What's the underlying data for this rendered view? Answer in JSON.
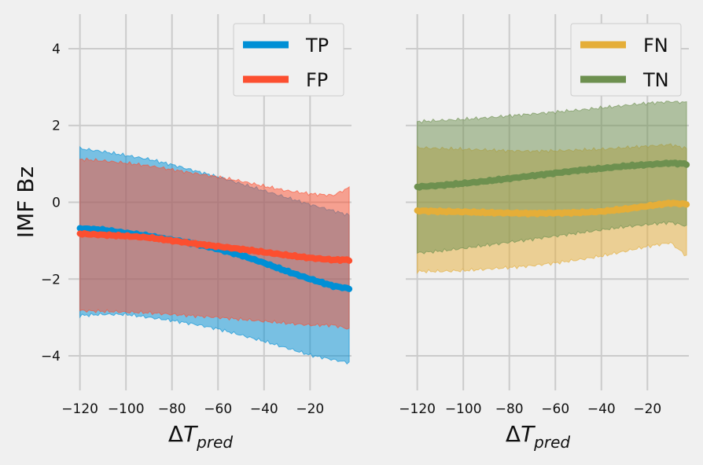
{
  "chart_data": [
    {
      "type": "line",
      "panel": "left",
      "ylabel": "IMF Bz",
      "xlabel_base": "ΔT",
      "xlabel_sub": "pred",
      "xlim": [
        -125,
        -2
      ],
      "ylim": [
        -4.9,
        4.9
      ],
      "xticks": [
        -120,
        -100,
        -80,
        -60,
        -40,
        -20
      ],
      "xtick_labels": [
        "−120",
        "−100",
        "−80",
        "−60",
        "−40",
        "−20"
      ],
      "yticks": [
        -4,
        -2,
        0,
        2,
        4
      ],
      "ytick_labels": [
        "−4",
        "−2",
        "0",
        "2",
        "4"
      ],
      "grid": true,
      "legend_position": "top-right",
      "x": [
        -120,
        -110,
        -100,
        -90,
        -80,
        -70,
        -60,
        -50,
        -40,
        -30,
        -20,
        -10,
        -3
      ],
      "series": [
        {
          "name": "TP",
          "color": "#008fd5",
          "mean": [
            -0.68,
            -0.72,
            -0.8,
            -0.88,
            -0.98,
            -1.08,
            -1.22,
            -1.38,
            -1.58,
            -1.8,
            -2.0,
            -2.18,
            -2.25
          ],
          "upper": [
            1.4,
            1.32,
            1.22,
            1.12,
            0.98,
            0.82,
            0.66,
            0.48,
            0.3,
            0.12,
            -0.06,
            -0.22,
            -0.34
          ],
          "lower": [
            -2.95,
            -2.92,
            -2.92,
            -3.0,
            -3.08,
            -3.18,
            -3.3,
            -3.46,
            -3.62,
            -3.8,
            -3.98,
            -4.1,
            -4.18
          ]
        },
        {
          "name": "FP",
          "color": "#fc4f30",
          "mean": [
            -0.82,
            -0.85,
            -0.88,
            -0.92,
            -1.0,
            -1.08,
            -1.15,
            -1.22,
            -1.3,
            -1.38,
            -1.45,
            -1.5,
            -1.5
          ],
          "upper": [
            1.12,
            1.08,
            1.02,
            0.95,
            0.85,
            0.75,
            0.66,
            0.55,
            0.42,
            0.3,
            0.22,
            0.18,
            0.38
          ],
          "lower": [
            -2.82,
            -2.84,
            -2.86,
            -2.88,
            -2.92,
            -2.96,
            -3.0,
            -3.05,
            -3.1,
            -3.15,
            -3.2,
            -3.2,
            -3.3
          ]
        }
      ]
    },
    {
      "type": "line",
      "panel": "right",
      "xlabel_base": "ΔT",
      "xlabel_sub": "pred",
      "xlim": [
        -125,
        -2
      ],
      "ylim": [
        -4.9,
        4.9
      ],
      "xticks": [
        -120,
        -100,
        -80,
        -60,
        -40,
        -20
      ],
      "xtick_labels": [
        "−120",
        "−100",
        "−80",
        "−60",
        "−40",
        "−20"
      ],
      "grid": true,
      "legend_position": "top-right",
      "x": [
        -120,
        -110,
        -100,
        -90,
        -80,
        -70,
        -60,
        -50,
        -40,
        -30,
        -20,
        -10,
        -3
      ],
      "series": [
        {
          "name": "FN",
          "color": "#e5ae38",
          "mean": [
            -0.22,
            -0.24,
            -0.25,
            -0.27,
            -0.28,
            -0.29,
            -0.28,
            -0.27,
            -0.24,
            -0.18,
            -0.1,
            -0.02,
            -0.05
          ],
          "upper": [
            1.42,
            1.4,
            1.38,
            1.36,
            1.34,
            1.33,
            1.34,
            1.36,
            1.38,
            1.42,
            1.46,
            1.5,
            1.4
          ],
          "lower": [
            -1.8,
            -1.8,
            -1.78,
            -1.74,
            -1.7,
            -1.65,
            -1.58,
            -1.5,
            -1.4,
            -1.28,
            -1.15,
            -1.05,
            -1.4
          ]
        },
        {
          "name": "TN",
          "color": "#6d904f",
          "mean": [
            0.4,
            0.44,
            0.49,
            0.55,
            0.62,
            0.69,
            0.76,
            0.83,
            0.88,
            0.94,
            0.98,
            1.02,
            1.0
          ],
          "upper": [
            2.1,
            2.13,
            2.16,
            2.2,
            2.25,
            2.3,
            2.35,
            2.4,
            2.46,
            2.52,
            2.58,
            2.62,
            2.6
          ],
          "lower": [
            -1.32,
            -1.27,
            -1.2,
            -1.12,
            -1.04,
            -0.96,
            -0.88,
            -0.8,
            -0.72,
            -0.64,
            -0.58,
            -0.52,
            -0.62
          ]
        }
      ]
    }
  ]
}
